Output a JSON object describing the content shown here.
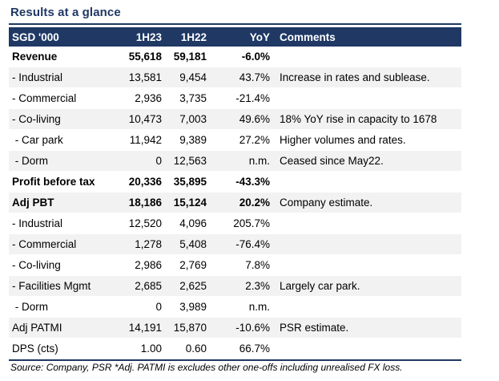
{
  "title": "Results at a glance",
  "header": [
    "SGD '000",
    "1H23",
    "1H22",
    "YoY",
    "Comments"
  ],
  "rows": [
    {
      "label": "Revenue",
      "h23": "55,618",
      "h22": "59,181",
      "yoy": "-6.0%",
      "comment": "",
      "bold": true
    },
    {
      "label": "- Industrial",
      "h23": "13,581",
      "h22": "9,454",
      "yoy": "43.7%",
      "comment": "Increase in rates and sublease.",
      "bold": false
    },
    {
      "label": "- Commercial",
      "h23": "2,936",
      "h22": "3,735",
      "yoy": "-21.4%",
      "comment": "",
      "bold": false
    },
    {
      "label": "- Co-living",
      "h23": "10,473",
      "h22": "7,003",
      "yoy": "49.6%",
      "comment": "18% YoY rise in capacity to 1678",
      "bold": false
    },
    {
      "label": " - Car park",
      "h23": "11,942",
      "h22": "9,389",
      "yoy": "27.2%",
      "comment": "Higher volumes and rates.",
      "bold": false
    },
    {
      "label": " - Dorm",
      "h23": "0",
      "h22": "12,563",
      "yoy": "n.m.",
      "comment": "Ceased since May22.",
      "bold": false
    },
    {
      "label": "Profit before tax",
      "h23": "20,336",
      "h22": "35,895",
      "yoy": "-43.3%",
      "comment": "",
      "bold": true
    },
    {
      "label": "Adj PBT",
      "h23": "18,186",
      "h22": "15,124",
      "yoy": "20.2%",
      "comment": "Company estimate.",
      "bold": true
    },
    {
      "label": "- Industrial",
      "h23": "12,520",
      "h22": "4,096",
      "yoy": "205.7%",
      "comment": "",
      "bold": false
    },
    {
      "label": "- Commercial",
      "h23": "1,278",
      "h22": "5,408",
      "yoy": "-76.4%",
      "comment": "",
      "bold": false
    },
    {
      "label": "- Co-living",
      "h23": "2,986",
      "h22": "2,769",
      "yoy": "7.8%",
      "comment": "",
      "bold": false
    },
    {
      "label": "- Facilities Mgmt",
      "h23": "2,685",
      "h22": "2,625",
      "yoy": "2.3%",
      "comment": "Largely car park.",
      "bold": false
    },
    {
      "label": " - Dorm",
      "h23": "0",
      "h22": "3,989",
      "yoy": "n.m.",
      "comment": "",
      "bold": false
    },
    {
      "label": "Adj PATMI",
      "h23": "14,191",
      "h22": "15,870",
      "yoy": "-10.6%",
      "comment": "PSR estimate.",
      "bold": false
    },
    {
      "label": "DPS (cts)",
      "h23": "1.00",
      "h22": "0.60",
      "yoy": "66.7%",
      "comment": "",
      "bold": false
    }
  ],
  "source": "Source: Company, PSR *Adj. PATMI is excludes other one-offs including unrealised FX loss."
}
